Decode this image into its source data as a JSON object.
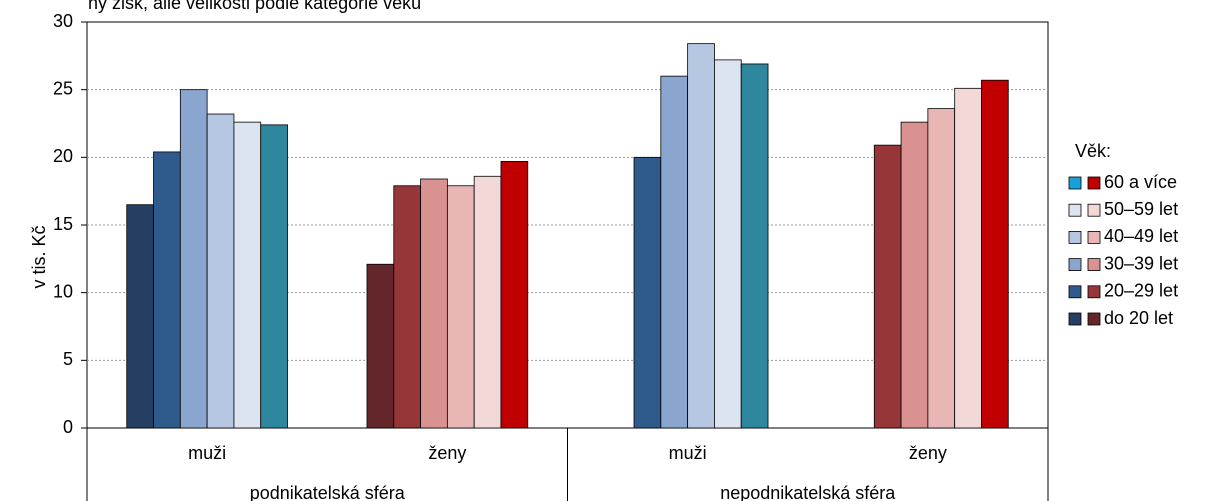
{
  "chart_data": {
    "type": "bar",
    "title": "",
    "top_note": "ny zisk, alle velikosti podle kategorie věku",
    "ylabel": "v tis. Kč",
    "ylim": [
      0,
      30
    ],
    "yticks": [
      0,
      5,
      10,
      15,
      20,
      25,
      30
    ],
    "grid": true,
    "legend_title": "Věk:",
    "legend_placement": "right",
    "age_groups": [
      "do 20 let",
      "20–29 let",
      "30–39 let",
      "40–49 let",
      "50–59 let",
      "60 a více"
    ],
    "legend_order": [
      "60 a více",
      "50–59 let",
      "40–49 let",
      "30–39 let",
      "20–29 let",
      "do 20 let"
    ],
    "colors": {
      "muzi": [
        "#243f63",
        "#2f5a8c",
        "#8aa6cf",
        "#b6c7e1",
        "#dce4f1",
        "#2e879c"
      ],
      "zeny": [
        "#64262a",
        "#963638",
        "#d99290",
        "#e8b7b5",
        "#f2d9d8",
        "#c00000"
      ],
      "legend_left": [
        "#17a1d8",
        "#dce4f1",
        "#b6c7e1",
        "#8aa6cf",
        "#2f5a8c",
        "#243f63"
      ]
    },
    "sectors": [
      {
        "label": "podnikatelská sféra",
        "groups": [
          {
            "label": "muži",
            "gender": "muzi",
            "values": [
              16.5,
              20.4,
              25.0,
              23.2,
              22.6,
              22.4
            ]
          },
          {
            "label": "ženy",
            "gender": "zeny",
            "values": [
              12.1,
              17.9,
              18.4,
              17.9,
              18.6,
              19.7
            ]
          }
        ]
      },
      {
        "label": "nepodnikatelská sféra",
        "groups": [
          {
            "label": "muži",
            "gender": "muzi",
            "values": [
              null,
              20.0,
              26.0,
              28.4,
              27.2,
              26.9
            ]
          },
          {
            "label": "ženy",
            "gender": "zeny",
            "values": [
              null,
              20.9,
              22.6,
              23.6,
              25.1,
              25.7
            ]
          }
        ]
      }
    ]
  }
}
